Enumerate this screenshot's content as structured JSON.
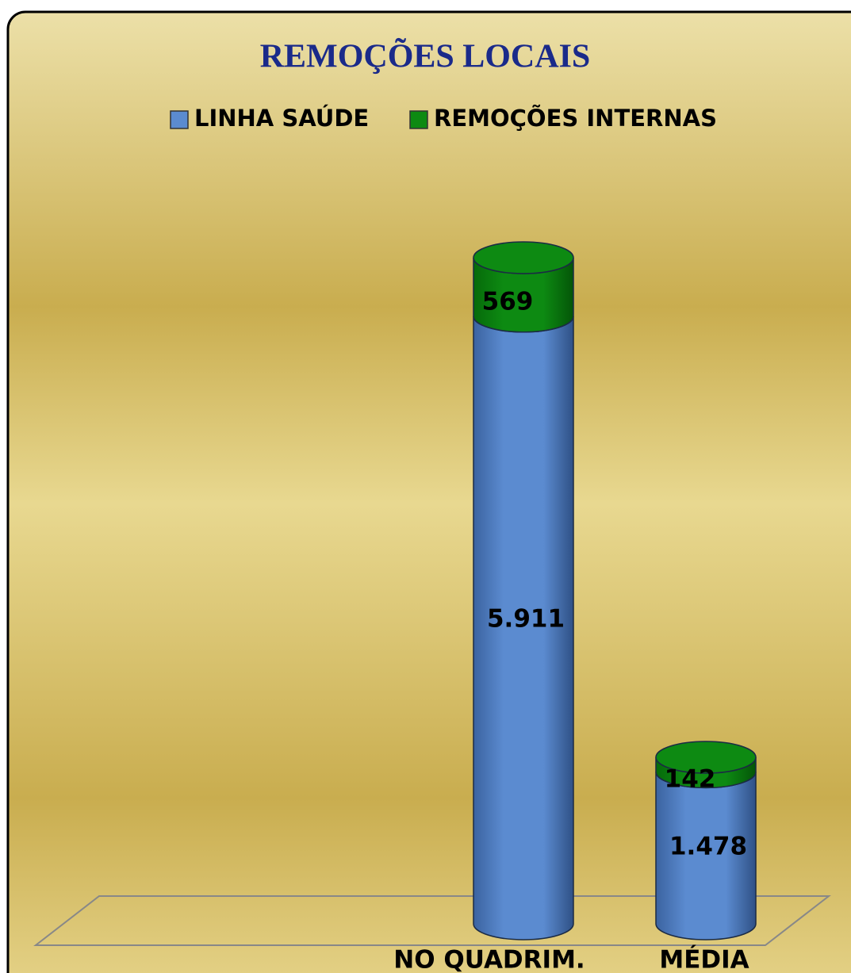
{
  "chart_data": {
    "type": "bar",
    "stacked": true,
    "title": "REMOÇÕES   LOCAIS",
    "categories": [
      "NO QUADRIM.",
      "MÉDIA"
    ],
    "series": [
      {
        "name": "LINHA  SAÚDE",
        "color": "#5b8bd0",
        "values": [
          5911,
          1478
        ],
        "value_labels": [
          "5.911",
          "1.478"
        ]
      },
      {
        "name": "REMOÇÕES INTERNAS",
        "color": "#0d8a12",
        "values": [
          569,
          142
        ],
        "value_labels": [
          "569",
          "142"
        ]
      }
    ]
  }
}
